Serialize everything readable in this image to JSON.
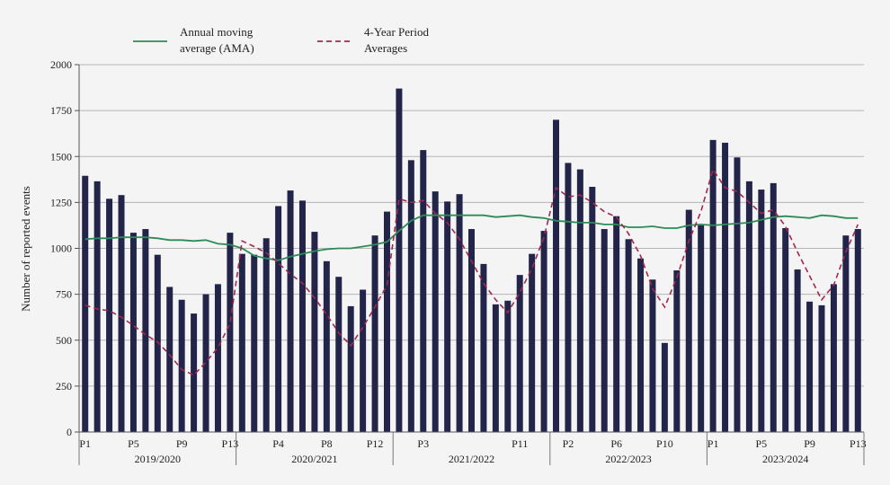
{
  "chart_data": {
    "type": "bar",
    "ylabel": "Number of reported events",
    "ylim": [
      0,
      2000
    ],
    "yticks": [
      0,
      250,
      500,
      750,
      1000,
      1250,
      1500,
      1750,
      2000
    ],
    "grid": true,
    "legend_position": "top-left",
    "colors": {
      "bar": "#22244a",
      "ama": "#2e8b57",
      "avg": "#a3284b",
      "grid": "#b5b5b5"
    },
    "legend": [
      {
        "key": "ama",
        "style": "solid",
        "line1": "Annual moving",
        "line2": "average (AMA)"
      },
      {
        "key": "avg",
        "style": "dashed",
        "line1": "4-Year Period",
        "line2": "Averages"
      }
    ],
    "years": [
      "2019/2020",
      "2020/2021",
      "2021/2022",
      "2022/2023",
      "2023/2024"
    ],
    "period_ticks": [
      [
        "P1",
        "P5",
        "P9",
        "P13"
      ],
      [
        "P4",
        "P8",
        "P12"
      ],
      [
        "P3",
        "P11"
      ],
      [
        "P2",
        "P6",
        "P10"
      ],
      [
        "P1",
        "P5",
        "P9",
        "P13"
      ]
    ],
    "bars": [
      1395,
      1365,
      1270,
      1290,
      1085,
      1105,
      965,
      790,
      720,
      645,
      750,
      805,
      1085,
      970,
      965,
      1055,
      1230,
      1315,
      1260,
      1090,
      930,
      845,
      685,
      775,
      1070,
      1200,
      1870,
      1480,
      1535,
      1310,
      1255,
      1295,
      1105,
      915,
      695,
      715,
      855,
      970,
      1095,
      1700,
      1465,
      1430,
      1335,
      1105,
      1175,
      1050,
      945,
      830,
      485,
      880,
      1210,
      1125,
      1590,
      1575,
      1495,
      1365,
      1320,
      1355,
      1110,
      885,
      710,
      690,
      805,
      1070,
      1105
    ],
    "ama": [
      1050,
      1055,
      1055,
      1060,
      1060,
      1060,
      1055,
      1045,
      1045,
      1040,
      1045,
      1025,
      1020,
      1000,
      960,
      945,
      935,
      955,
      970,
      985,
      995,
      1000,
      1000,
      1010,
      1020,
      1035,
      1095,
      1150,
      1180,
      1180,
      1180,
      1180,
      1180,
      1180,
      1170,
      1175,
      1180,
      1170,
      1165,
      1150,
      1145,
      1140,
      1140,
      1130,
      1130,
      1115,
      1115,
      1120,
      1110,
      1110,
      1125,
      1130,
      1125,
      1130,
      1135,
      1140,
      1155,
      1170,
      1175,
      1170,
      1165,
      1180,
      1175,
      1165,
      1165
    ],
    "avg4": [
      690,
      670,
      660,
      625,
      580,
      530,
      490,
      420,
      340,
      310,
      380,
      460,
      590,
      1040,
      1010,
      975,
      920,
      860,
      810,
      730,
      640,
      540,
      470,
      570,
      680,
      800,
      1270,
      1250,
      1260,
      1190,
      1140,
      1050,
      930,
      810,
      720,
      650,
      760,
      890,
      1060,
      1330,
      1280,
      1290,
      1250,
      1200,
      1170,
      1080,
      960,
      780,
      680,
      840,
      1040,
      1200,
      1430,
      1330,
      1310,
      1250,
      1190,
      1210,
      1120,
      980,
      850,
      720,
      800,
      980,
      1130
    ]
  }
}
